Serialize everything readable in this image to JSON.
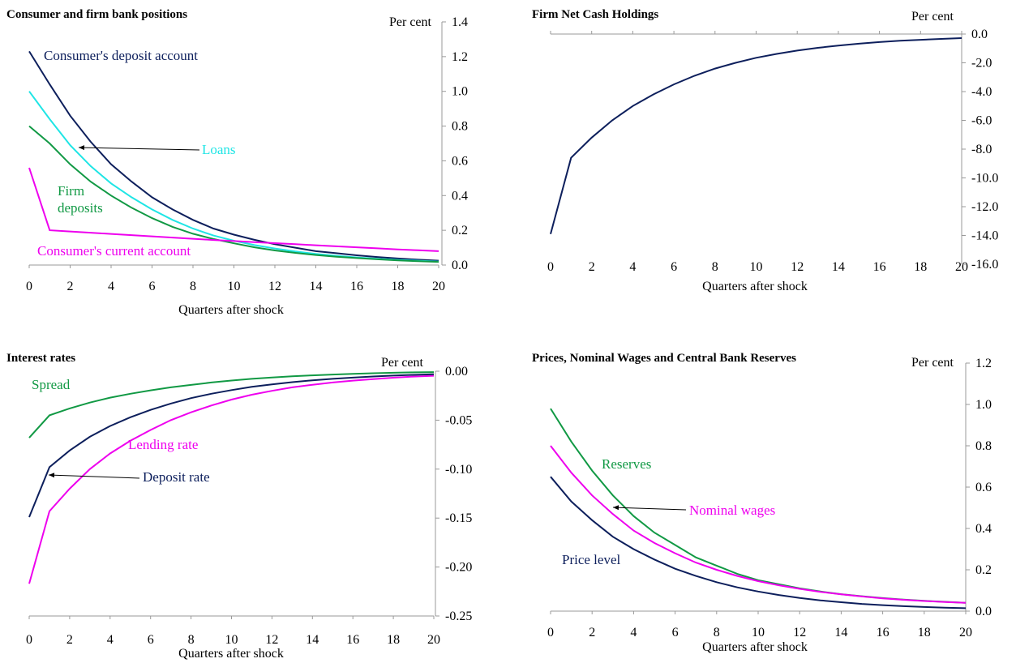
{
  "chart_data": [
    {
      "type": "line",
      "title": "Consumer and firm bank positions",
      "unit_label": "Per cent",
      "xlabel": "Quarters after shock",
      "ylabel": "",
      "xlim": [
        0,
        20
      ],
      "ylim": [
        0,
        1.4
      ],
      "x_ticks": [
        0,
        2,
        4,
        6,
        8,
        10,
        12,
        14,
        16,
        18,
        20
      ],
      "y_ticks": [
        "0.0",
        "0.2",
        "0.4",
        "0.6",
        "0.8",
        "1.0",
        "1.2",
        "1.4"
      ],
      "y_axis_side": "right",
      "x": [
        0,
        1,
        2,
        3,
        4,
        5,
        6,
        7,
        8,
        9,
        10,
        11,
        12,
        13,
        14,
        15,
        16,
        17,
        18,
        19,
        20
      ],
      "series": [
        {
          "name": "Consumer's deposit account",
          "color": "#0d1f5c",
          "values": [
            1.23,
            1.04,
            0.86,
            0.71,
            0.58,
            0.48,
            0.39,
            0.32,
            0.26,
            0.21,
            0.175,
            0.145,
            0.12,
            0.1,
            0.08,
            0.068,
            0.056,
            0.046,
            0.038,
            0.031,
            0.025
          ]
        },
        {
          "name": "Loans",
          "color": "#1fe5e5",
          "values": [
            1.0,
            0.84,
            0.69,
            0.57,
            0.47,
            0.39,
            0.32,
            0.26,
            0.21,
            0.17,
            0.14,
            0.115,
            0.095,
            0.078,
            0.064,
            0.053,
            0.044,
            0.036,
            0.03,
            0.025,
            0.02
          ]
        },
        {
          "name": "Firm deposits",
          "color": "#119944",
          "values": [
            0.8,
            0.7,
            0.58,
            0.48,
            0.4,
            0.33,
            0.27,
            0.22,
            0.18,
            0.15,
            0.125,
            0.102,
            0.084,
            0.07,
            0.058,
            0.048,
            0.04,
            0.033,
            0.027,
            0.022,
            0.018
          ]
        },
        {
          "name": "Consumer's current account",
          "color": "#ee00ee",
          "values": [
            0.56,
            0.2,
            0.193,
            0.186,
            0.179,
            0.172,
            0.165,
            0.158,
            0.151,
            0.144,
            0.138,
            0.132,
            0.126,
            0.12,
            0.114,
            0.108,
            0.102,
            0.096,
            0.09,
            0.085,
            0.08
          ]
        }
      ],
      "annotations": [
        {
          "text": "Consumer's deposit account",
          "series": 0
        },
        {
          "text": "Loans",
          "series": 1,
          "arrow": true
        },
        {
          "text": "Firm",
          "series": 2
        },
        {
          "text": "deposits",
          "series": 2
        },
        {
          "text": "Consumer's current account",
          "series": 3
        }
      ],
      "grid": false,
      "legend": "none"
    },
    {
      "type": "line",
      "title": "Firm Net Cash Holdings",
      "unit_label": "Per cent",
      "xlabel": "Quarters after shock",
      "ylabel": "",
      "xlim": [
        0,
        20
      ],
      "ylim": [
        -16,
        0
      ],
      "x_ticks": [
        0,
        2,
        4,
        6,
        8,
        10,
        12,
        14,
        16,
        18,
        20
      ],
      "y_ticks": [
        "0.0",
        "-2.0",
        "-4.0",
        "-6.0",
        "-8.0",
        "-10.0",
        "-12.0",
        "-14.0",
        "-16.0"
      ],
      "y_axis_side": "right",
      "x": [
        0,
        1,
        2,
        3,
        4,
        5,
        6,
        7,
        8,
        9,
        10,
        11,
        12,
        13,
        14,
        15,
        16,
        17,
        18,
        19,
        20
      ],
      "series": [
        {
          "name": "Firm Net Cash Holdings",
          "color": "#0d1f5c",
          "values": [
            -13.9,
            -8.6,
            -7.2,
            -6.0,
            -5.0,
            -4.2,
            -3.5,
            -2.9,
            -2.4,
            -2.0,
            -1.65,
            -1.38,
            -1.15,
            -0.96,
            -0.8,
            -0.67,
            -0.56,
            -0.47,
            -0.4,
            -0.34,
            -0.28
          ]
        }
      ],
      "grid": false,
      "legend": "none"
    },
    {
      "type": "line",
      "title": "Interest rates",
      "unit_label": "Per cent",
      "xlabel": "Quarters after shock",
      "ylabel": "",
      "xlim": [
        0,
        20
      ],
      "ylim": [
        -0.25,
        0
      ],
      "x_ticks": [
        0,
        2,
        4,
        6,
        8,
        10,
        12,
        14,
        16,
        18,
        20
      ],
      "y_ticks": [
        "0.00",
        "-0.05",
        "-0.10",
        "-0.15",
        "-0.20",
        "-0.25"
      ],
      "y_axis_side": "right",
      "x": [
        0,
        1,
        2,
        3,
        4,
        5,
        6,
        7,
        8,
        9,
        10,
        11,
        12,
        13,
        14,
        15,
        16,
        17,
        18,
        19,
        20
      ],
      "series": [
        {
          "name": "Spread",
          "color": "#119944",
          "values": [
            -0.068,
            -0.045,
            -0.038,
            -0.032,
            -0.027,
            -0.023,
            -0.0195,
            -0.0165,
            -0.014,
            -0.0115,
            -0.0095,
            -0.0078,
            -0.0064,
            -0.0052,
            -0.0042,
            -0.0034,
            -0.0027,
            -0.0021,
            -0.0016,
            -0.0012,
            -0.0009
          ]
        },
        {
          "name": "Lending rate",
          "color": "#ee00ee",
          "values": [
            -0.217,
            -0.143,
            -0.12,
            -0.1,
            -0.084,
            -0.071,
            -0.06,
            -0.05,
            -0.042,
            -0.035,
            -0.029,
            -0.024,
            -0.02,
            -0.0165,
            -0.0138,
            -0.0115,
            -0.0096,
            -0.008,
            -0.0066,
            -0.0055,
            -0.0046
          ]
        },
        {
          "name": "Deposit rate",
          "color": "#0d1f5c",
          "values": [
            -0.149,
            -0.098,
            -0.081,
            -0.067,
            -0.056,
            -0.047,
            -0.0395,
            -0.033,
            -0.0275,
            -0.023,
            -0.0193,
            -0.016,
            -0.0134,
            -0.0112,
            -0.0093,
            -0.0078,
            -0.0065,
            -0.0054,
            -0.0045,
            -0.0037,
            -0.0031
          ]
        }
      ],
      "annotations": [
        {
          "text": "Spread",
          "series": 0
        },
        {
          "text": "Lending rate",
          "series": 1
        },
        {
          "text": "Deposit rate",
          "series": 2,
          "arrow": true
        }
      ],
      "grid": false,
      "legend": "none"
    },
    {
      "type": "line",
      "title": "Prices, Nominal Wages and Central Bank Reserves",
      "unit_label": "Per cent",
      "xlabel": "Quarters after shock",
      "ylabel": "",
      "xlim": [
        0,
        20
      ],
      "ylim": [
        0,
        1.2
      ],
      "x_ticks": [
        0,
        2,
        4,
        6,
        8,
        10,
        12,
        14,
        16,
        18,
        20
      ],
      "y_ticks": [
        "0.0",
        "0.2",
        "0.4",
        "0.6",
        "0.8",
        "1.0",
        "1.2"
      ],
      "y_axis_side": "right",
      "x": [
        0,
        1,
        2,
        3,
        4,
        5,
        6,
        7,
        8,
        9,
        10,
        11,
        12,
        13,
        14,
        15,
        16,
        17,
        18,
        19,
        20
      ],
      "series": [
        {
          "name": "Reserves",
          "color": "#119944",
          "values": [
            0.98,
            0.82,
            0.68,
            0.56,
            0.46,
            0.38,
            0.32,
            0.26,
            0.22,
            0.18,
            0.15,
            0.13,
            0.11,
            0.095,
            0.082,
            0.072,
            0.063,
            0.056,
            0.05,
            0.045,
            0.04
          ]
        },
        {
          "name": "Nominal wages",
          "color": "#ee00ee",
          "values": [
            0.8,
            0.67,
            0.56,
            0.47,
            0.39,
            0.33,
            0.28,
            0.235,
            0.2,
            0.17,
            0.145,
            0.125,
            0.108,
            0.093,
            0.081,
            0.071,
            0.062,
            0.055,
            0.049,
            0.044,
            0.04
          ]
        },
        {
          "name": "Price level",
          "color": "#0d1f5c",
          "values": [
            0.65,
            0.53,
            0.44,
            0.36,
            0.3,
            0.25,
            0.205,
            0.17,
            0.14,
            0.115,
            0.095,
            0.078,
            0.064,
            0.052,
            0.043,
            0.035,
            0.029,
            0.024,
            0.02,
            0.017,
            0.014
          ]
        }
      ],
      "annotations": [
        {
          "text": "Reserves",
          "series": 0
        },
        {
          "text": "Nominal wages",
          "series": 1,
          "arrow": true
        },
        {
          "text": "Price level",
          "series": 2
        }
      ],
      "grid": false,
      "legend": "none"
    }
  ]
}
